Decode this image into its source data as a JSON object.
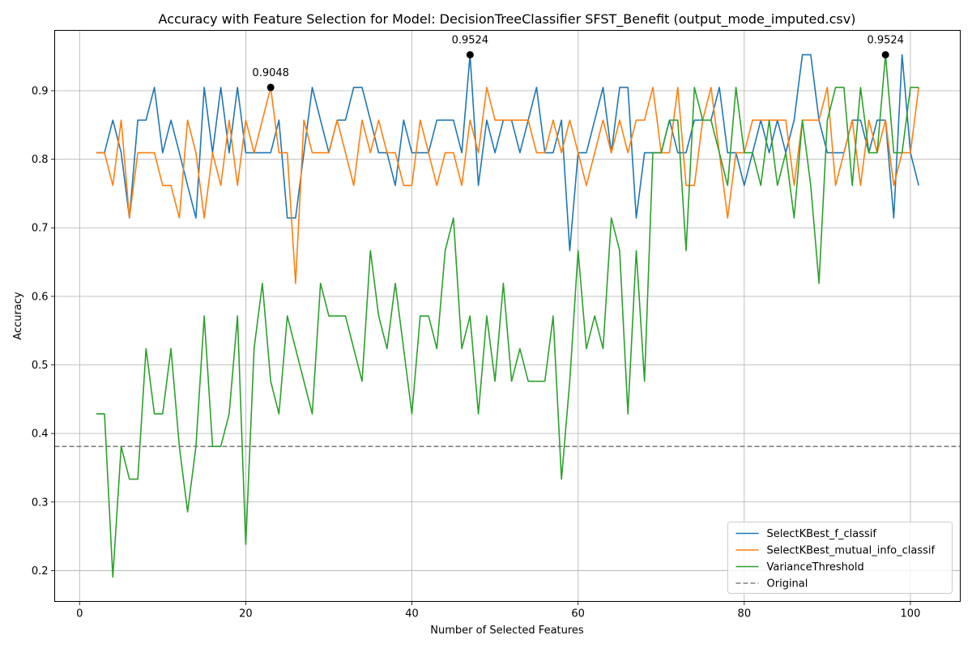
{
  "chart_data": {
    "type": "line",
    "title": "Accuracy with Feature Selection for Model: DecisionTreeClassifier SFST_Benefit (output_mode_imputed.csv)",
    "xlabel": "Number of Selected Features",
    "ylabel": "Accuracy",
    "xlim": [
      -3,
      106
    ],
    "ylim": [
      0.155,
      0.988
    ],
    "xticks": [
      0,
      20,
      40,
      60,
      80,
      100
    ],
    "yticks": [
      0.2,
      0.3,
      0.4,
      0.5,
      0.6,
      0.7,
      0.8,
      0.9
    ],
    "xtick_labels": [
      "0",
      "20",
      "40",
      "60",
      "80",
      "100"
    ],
    "ytick_labels": [
      "0.2",
      "0.3",
      "0.4",
      "0.5",
      "0.6",
      "0.7",
      "0.8",
      "0.9"
    ],
    "grid": true,
    "legend_position": "lower-right",
    "x": [
      2,
      3,
      4,
      5,
      6,
      7,
      8,
      9,
      10,
      11,
      12,
      13,
      14,
      15,
      16,
      17,
      18,
      19,
      20,
      21,
      22,
      23,
      24,
      25,
      26,
      27,
      28,
      29,
      30,
      31,
      32,
      33,
      34,
      35,
      36,
      37,
      38,
      39,
      40,
      41,
      42,
      43,
      44,
      45,
      46,
      47,
      48,
      49,
      50,
      51,
      52,
      53,
      54,
      55,
      56,
      57,
      58,
      59,
      60,
      61,
      62,
      63,
      64,
      65,
      66,
      67,
      68,
      69,
      70,
      71,
      72,
      73,
      74,
      75,
      76,
      77,
      78,
      79,
      80,
      81,
      82,
      83,
      84,
      85,
      86,
      87,
      88,
      89,
      90,
      91,
      92,
      93,
      94,
      95,
      96,
      97,
      98,
      99,
      100,
      101
    ],
    "series": [
      {
        "name": "SelectKBest_f_classif",
        "color": "#1f77b4",
        "values": [
          0.8095,
          0.8095,
          0.8571,
          0.8095,
          0.7143,
          0.8571,
          0.8571,
          0.9048,
          0.8095,
          0.8571,
          0.8095,
          0.7619,
          0.7143,
          0.9048,
          0.8095,
          0.9048,
          0.8095,
          0.9048,
          0.8095,
          0.8095,
          0.8095,
          0.8095,
          0.8571,
          0.7143,
          0.7143,
          0.8095,
          0.9048,
          0.8571,
          0.8095,
          0.8571,
          0.8571,
          0.9048,
          0.9048,
          0.8571,
          0.8095,
          0.8095,
          0.7619,
          0.8571,
          0.8095,
          0.8095,
          0.8095,
          0.8571,
          0.8571,
          0.8571,
          0.8095,
          0.9524,
          0.7619,
          0.8571,
          0.8095,
          0.8571,
          0.8571,
          0.8095,
          0.8571,
          0.9048,
          0.8095,
          0.8095,
          0.8571,
          0.6667,
          0.8095,
          0.8095,
          0.8571,
          0.9048,
          0.8095,
          0.9048,
          0.9048,
          0.7143,
          0.8095,
          0.8095,
          0.8095,
          0.8571,
          0.8095,
          0.8095,
          0.8571,
          0.8571,
          0.8571,
          0.9048,
          0.8095,
          0.8095,
          0.7619,
          0.8095,
          0.8571,
          0.8095,
          0.8571,
          0.8095,
          0.8571,
          0.9524,
          0.9524,
          0.8571,
          0.8095,
          0.8095,
          0.8095,
          0.8571,
          0.8571,
          0.8095,
          0.8571,
          0.8571,
          0.7143,
          0.9524,
          0.8095,
          0.7619
        ]
      },
      {
        "name": "SelectKBest_mutual_info_classif",
        "color": "#ff7f0e",
        "values": [
          0.8095,
          0.8095,
          0.7619,
          0.8571,
          0.7143,
          0.8095,
          0.8095,
          0.8095,
          0.7619,
          0.7619,
          0.7143,
          0.8571,
          0.8095,
          0.7143,
          0.8095,
          0.7619,
          0.8571,
          0.7619,
          0.8571,
          0.8095,
          0.8571,
          0.9048,
          0.8095,
          0.8095,
          0.619,
          0.8571,
          0.8095,
          0.8095,
          0.8095,
          0.8571,
          0.8095,
          0.7619,
          0.8571,
          0.8095,
          0.8571,
          0.8095,
          0.8095,
          0.7619,
          0.7619,
          0.8571,
          0.8095,
          0.7619,
          0.8095,
          0.8095,
          0.7619,
          0.8571,
          0.8095,
          0.9048,
          0.8571,
          0.8571,
          0.8571,
          0.8571,
          0.8571,
          0.8095,
          0.8095,
          0.8571,
          0.8095,
          0.8571,
          0.8095,
          0.7619,
          0.8095,
          0.8571,
          0.8095,
          0.8571,
          0.8095,
          0.8571,
          0.8571,
          0.9048,
          0.8095,
          0.8095,
          0.9048,
          0.7619,
          0.7619,
          0.8571,
          0.9048,
          0.8095,
          0.7143,
          0.8095,
          0.8095,
          0.8571,
          0.8571,
          0.8571,
          0.8571,
          0.8571,
          0.7619,
          0.8571,
          0.8571,
          0.8571,
          0.9048,
          0.7619,
          0.8095,
          0.8571,
          0.7619,
          0.8571,
          0.8095,
          0.8571,
          0.7619,
          0.8095,
          0.8095,
          0.9048
        ]
      },
      {
        "name": "VarianceThreshold",
        "color": "#2ca02c",
        "values": [
          0.4286,
          0.4286,
          0.1905,
          0.381,
          0.3333,
          0.3333,
          0.5238,
          0.4286,
          0.4286,
          0.5238,
          0.381,
          0.2857,
          0.381,
          0.5714,
          0.381,
          0.381,
          0.4286,
          0.5714,
          0.2381,
          0.5238,
          0.619,
          0.4762,
          0.4286,
          0.5714,
          0.5238,
          0.4762,
          0.4286,
          0.619,
          0.5714,
          0.5714,
          0.5714,
          0.5238,
          0.4762,
          0.6667,
          0.5714,
          0.5238,
          0.619,
          0.5238,
          0.4286,
          0.5714,
          0.5714,
          0.5238,
          0.6667,
          0.7143,
          0.5238,
          0.5714,
          0.4286,
          0.5714,
          0.4762,
          0.619,
          0.4762,
          0.5238,
          0.4762,
          0.4762,
          0.4762,
          0.5714,
          0.3333,
          0.4762,
          0.6667,
          0.5238,
          0.5714,
          0.5238,
          0.7143,
          0.6667,
          0.4286,
          0.6667,
          0.4762,
          0.8095,
          0.8095,
          0.8571,
          0.8571,
          0.6667,
          0.9048,
          0.8571,
          0.8571,
          0.8095,
          0.7619,
          0.9048,
          0.8095,
          0.8095,
          0.7619,
          0.8571,
          0.7619,
          0.8095,
          0.7143,
          0.8571,
          0.7619,
          0.619,
          0.8571,
          0.9048,
          0.9048,
          0.7619,
          0.9048,
          0.8095,
          0.8095,
          0.9524,
          0.8095,
          0.8095,
          0.9048,
          0.9048
        ]
      }
    ],
    "baseline": {
      "name": "Original",
      "value": 0.381,
      "color": "#808080",
      "style": "dashed"
    },
    "annotations": [
      {
        "x": 23,
        "y": 0.9048,
        "label": "0.9048"
      },
      {
        "x": 47,
        "y": 0.9524,
        "label": "0.9524"
      },
      {
        "x": 97,
        "y": 0.9524,
        "label": "0.9524"
      }
    ],
    "legend": [
      "SelectKBest_f_classif",
      "SelectKBest_mutual_info_classif",
      "VarianceThreshold",
      "Original"
    ]
  }
}
